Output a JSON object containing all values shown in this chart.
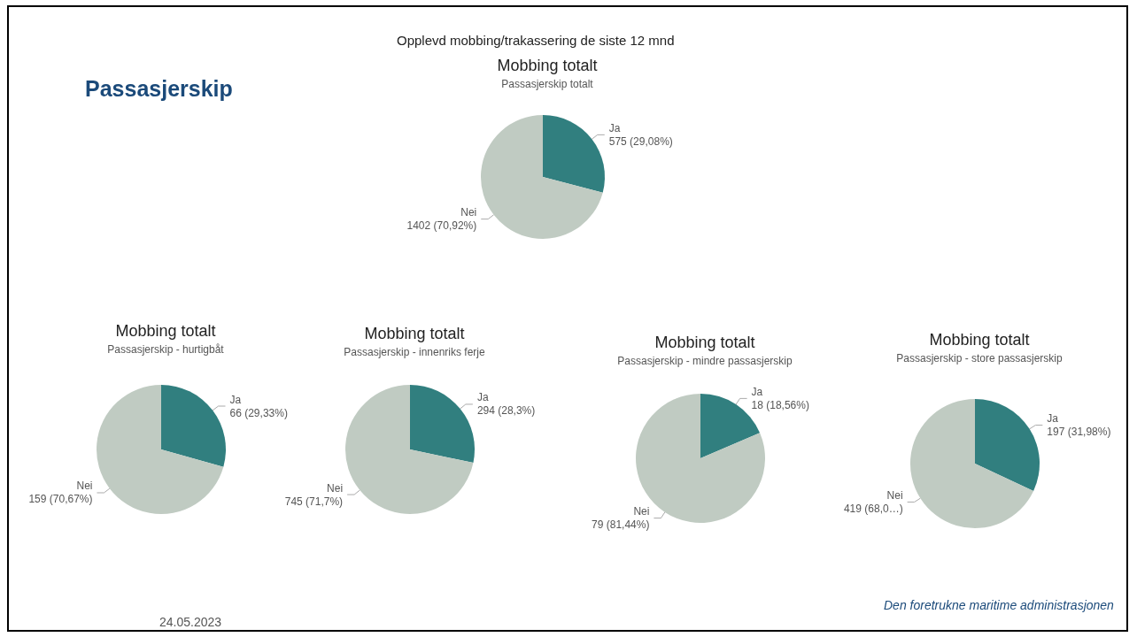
{
  "chart_data": [
    {
      "type": "pie",
      "title": "Mobbing totalt",
      "subtitle": "Passasjerskip totalt",
      "categories": [
        "Ja",
        "Nei"
      ],
      "values": [
        575,
        1402
      ],
      "colors": [
        "#317f7f",
        "#c0cbc2"
      ],
      "value_labels": [
        "575 (29,08%)",
        "1402 (70,92%)"
      ],
      "annotations": [
        "Passasjerskip",
        "Opplevd mobbing/trakassering de siste 12 mnd",
        "24.05.2023",
        "Den foretrukne maritime administrasjonen"
      ]
    },
    {
      "type": "pie",
      "title": "Mobbing totalt",
      "subtitle": "Passasjerskip - hurtigbåt",
      "categories": [
        "Ja",
        "Nei"
      ],
      "values": [
        66,
        159
      ],
      "colors": [
        "#317f7f",
        "#c0cbc2"
      ],
      "value_labels": [
        "66 (29,33%)",
        "159 (70,67%)"
      ]
    },
    {
      "type": "pie",
      "title": "Mobbing totalt",
      "subtitle": "Passasjerskip - innenriks ferje",
      "categories": [
        "Ja",
        "Nei"
      ],
      "values": [
        294,
        745
      ],
      "colors": [
        "#317f7f",
        "#c0cbc2"
      ],
      "value_labels": [
        "294 (28,3%)",
        "745 (71,7%)"
      ]
    },
    {
      "type": "pie",
      "title": "Mobbing totalt",
      "subtitle": "Passasjerskip - mindre passasjerskip",
      "categories": [
        "Ja",
        "Nei"
      ],
      "values": [
        18,
        79
      ],
      "colors": [
        "#317f7f",
        "#c0cbc2"
      ],
      "value_labels": [
        "18 (18,56%)",
        "79 (81,44%)"
      ]
    },
    {
      "type": "pie",
      "title": "Mobbing totalt",
      "subtitle": "Passasjerskip - store passasjerskip",
      "categories": [
        "Ja",
        "Nei"
      ],
      "values": [
        197,
        419
      ],
      "colors": [
        "#317f7f",
        "#c0cbc2"
      ],
      "value_labels": [
        "197 (31,98%)",
        "419 (68,0…)"
      ]
    }
  ]
}
